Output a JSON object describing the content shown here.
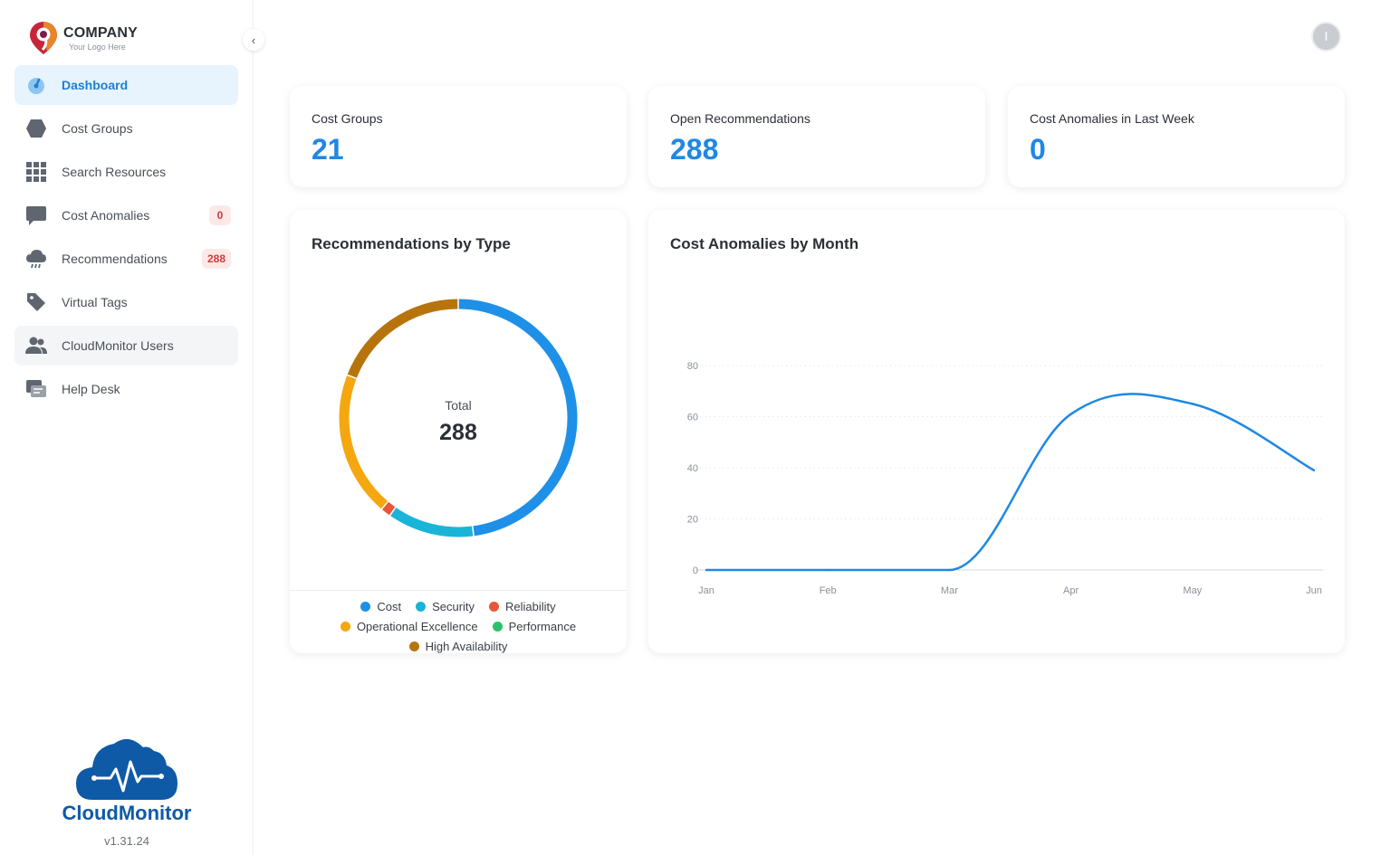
{
  "company": {
    "name": "COMPANY",
    "tagline": "Your Logo Here"
  },
  "sidebar": {
    "items": [
      {
        "label": "Dashboard",
        "icon": "dashboard-gauge-icon",
        "active": true
      },
      {
        "label": "Cost Groups",
        "icon": "hexagon-icon"
      },
      {
        "label": "Search Resources",
        "icon": "grid-icon"
      },
      {
        "label": "Cost Anomalies",
        "icon": "chat-bubble-icon",
        "badge": "0"
      },
      {
        "label": "Recommendations",
        "icon": "cloud-rain-icon",
        "badge": "288"
      },
      {
        "label": "Virtual Tags",
        "icon": "tag-icon"
      },
      {
        "label": "CloudMonitor Users",
        "icon": "users-icon"
      },
      {
        "label": "Help Desk",
        "icon": "help-desk-icon"
      }
    ]
  },
  "brand": {
    "name": "CloudMonitor",
    "version": "v1.31.24"
  },
  "user": {
    "initial": "I"
  },
  "stats": [
    {
      "title": "Cost Groups",
      "value": "21"
    },
    {
      "title": "Open Recommendations",
      "value": "288"
    },
    {
      "title": "Cost Anomalies in Last Week",
      "value": "0"
    }
  ],
  "donut": {
    "title": "Recommendations by Type",
    "center_label": "Total",
    "center_value": "288"
  },
  "line": {
    "title": "Cost Anomalies by Month"
  },
  "colors": {
    "accent": "#1e88e5",
    "cost": "#1e90e8",
    "security": "#1ab4d8",
    "reliability": "#e8553b",
    "operational_excellence": "#f5a70f",
    "performance": "#2ec16c",
    "high_availability": "#b8740c"
  },
  "chart_data": [
    {
      "type": "pie",
      "title": "Recommendations by Type",
      "total": 288,
      "categories": [
        "Cost",
        "Security",
        "Reliability",
        "Operational Excellence",
        "Performance",
        "High Availability"
      ],
      "values": [
        138,
        34,
        4,
        57,
        0,
        55
      ],
      "legend": "bottom"
    },
    {
      "type": "line",
      "title": "Cost Anomalies by Month",
      "categories": [
        "Jan",
        "Feb",
        "Mar",
        "Apr",
        "May",
        "Jun"
      ],
      "series": [
        {
          "values": [
            0,
            0,
            0,
            61,
            65,
            39
          ]
        }
      ],
      "ylim": [
        0,
        80
      ],
      "yticks": [
        0,
        20,
        40,
        60,
        80
      ],
      "grid": true
    }
  ]
}
